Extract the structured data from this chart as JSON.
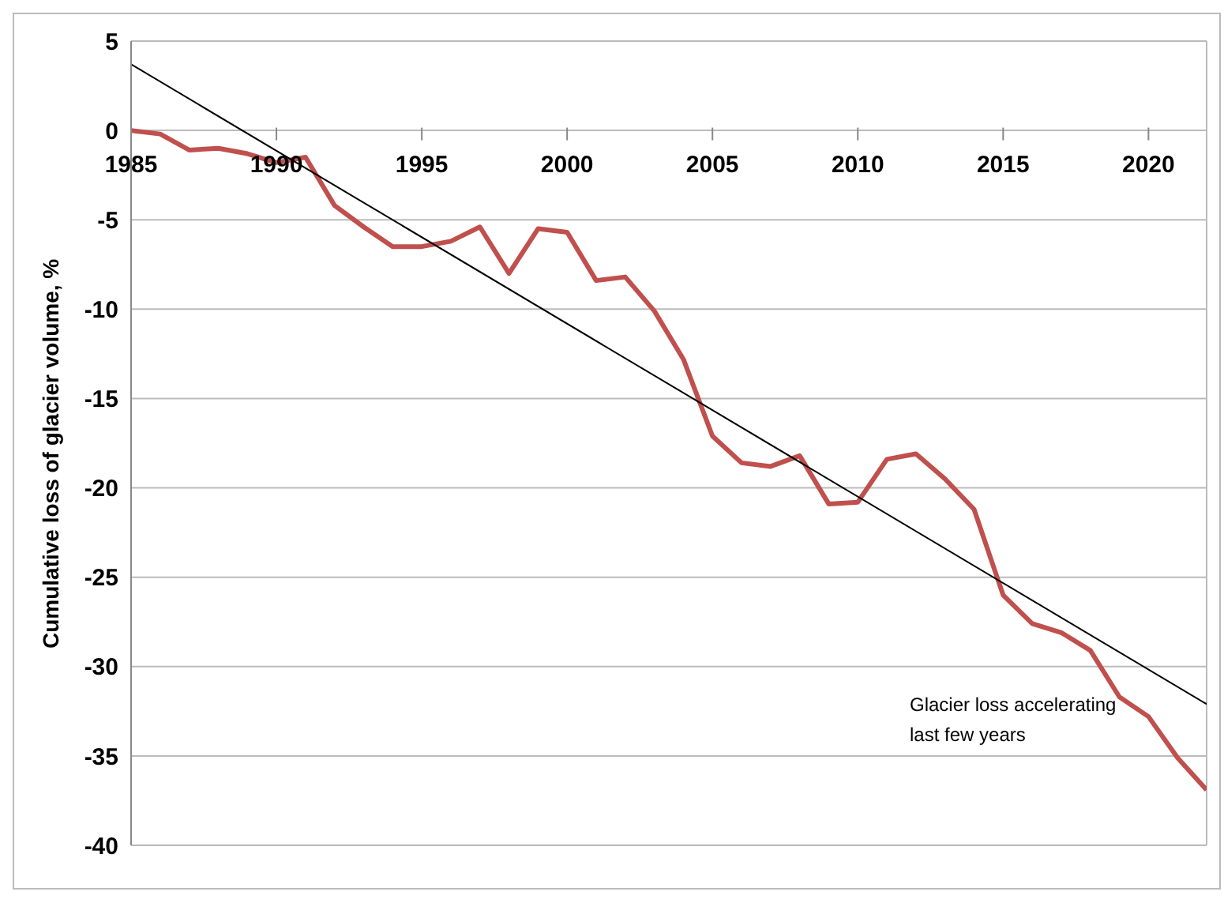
{
  "chart_data": {
    "type": "line",
    "ylabel": "Cumulative loss of  glacier volume, %",
    "x": [
      1985,
      1986,
      1987,
      1988,
      1989,
      1990,
      1991,
      1992,
      1993,
      1994,
      1995,
      1996,
      1997,
      1998,
      1999,
      2000,
      2001,
      2002,
      2003,
      2004,
      2005,
      2006,
      2007,
      2008,
      2009,
      2010,
      2011,
      2012,
      2013,
      2014,
      2015,
      2016,
      2017,
      2018,
      2019,
      2020,
      2021,
      2022
    ],
    "series": [
      {
        "color": "#c0504d",
        "values": [
          0,
          -0.2,
          -1.1,
          -1.0,
          -1.3,
          -1.8,
          -1.5,
          -4.2,
          -5.4,
          -6.5,
          -6.5,
          -6.2,
          -5.4,
          -8.0,
          -5.5,
          -5.7,
          -8.4,
          -8.2,
          -10.1,
          -12.8,
          -17.1,
          -18.6,
          -18.8,
          -18.2,
          -20.9,
          -20.8,
          -18.4,
          -18.1,
          -19.5,
          -21.2,
          -26.0,
          -27.6,
          -28.1,
          -29.1,
          -31.7,
          -32.8,
          -35.1,
          -36.9
        ]
      },
      {
        "type": "line",
        "color": "#000000",
        "x": [
          1985,
          2022
        ],
        "values": [
          3.7,
          -32.1
        ]
      }
    ],
    "xlim": [
      1985,
      2022
    ],
    "xticks": [
      1985,
      1990,
      1995,
      2000,
      2005,
      2010,
      2015,
      2020
    ],
    "ylim": [
      -40,
      5
    ],
    "yticks": [
      5,
      0,
      -5,
      -10,
      -15,
      -20,
      -25,
      -30,
      -35,
      -40
    ],
    "grid": "y",
    "marker": "none",
    "line_style": "solid",
    "annotations": [
      "Glacier loss accelerating\nlast few years"
    ]
  }
}
